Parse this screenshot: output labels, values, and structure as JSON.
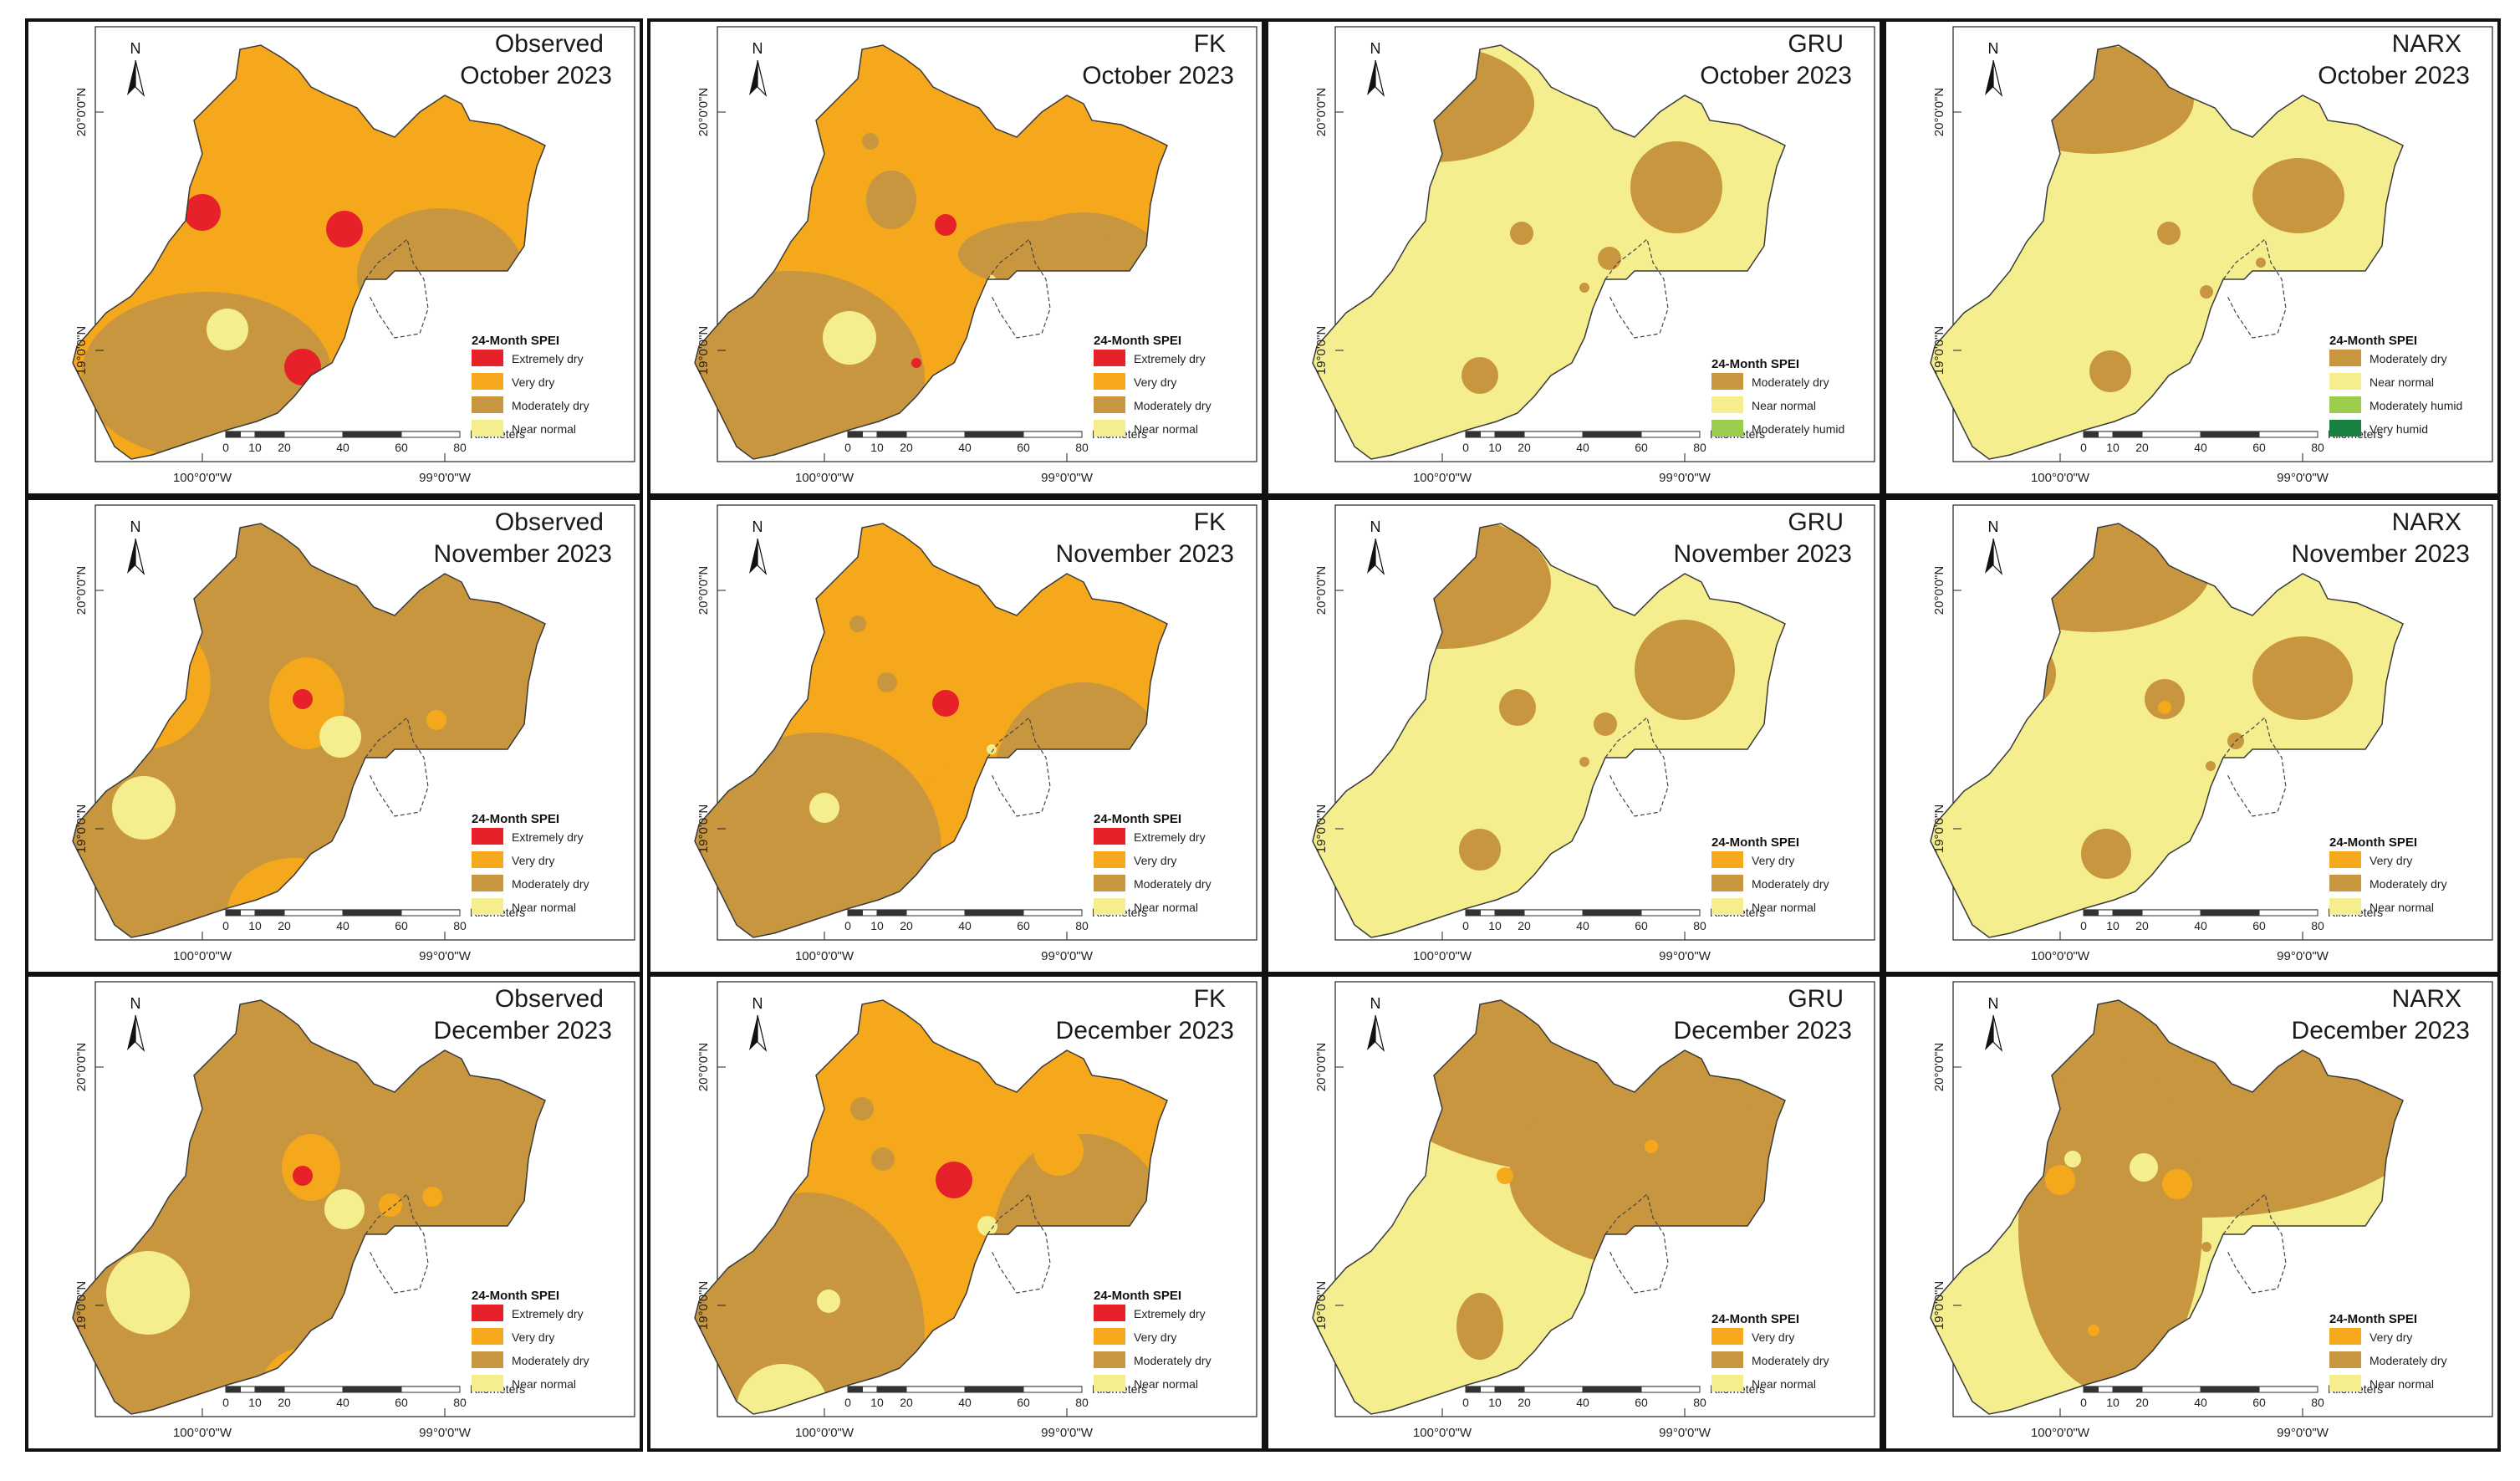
{
  "figure": {
    "colors": {
      "extremely_dry": "#e62129",
      "very_dry": "#f5a81c",
      "moderately_dry": "#c8963e",
      "near_normal": "#f4ee8f",
      "moderately_humid": "#9ccc4c",
      "very_humid": "#1a8040"
    },
    "axis_labels": {
      "lon_left": "100°0'0\"W",
      "lon_right": "99°0'0\"W",
      "lat_top": "20°0'0\"N",
      "lat_bottom": "19°0'0\"N"
    },
    "north_label": "N",
    "scale": {
      "unit": "Kilometers",
      "ticks": [
        "0",
        "10",
        "20",
        "40",
        "60",
        "80"
      ]
    },
    "legend_title": "24-Month SPEI",
    "panels": [
      {
        "model": "Observed",
        "month": "October 2023",
        "base": "very_dry",
        "legend": [
          "Extremely dry",
          "Very dry",
          "Moderately dry",
          "Near normal"
        ],
        "legend_colors": [
          "extremely_dry",
          "very_dry",
          "moderately_dry",
          "near_normal"
        ]
      },
      {
        "model": "FK",
        "month": "October 2023",
        "base": "very_dry",
        "legend": [
          "Extremely dry",
          "Very dry",
          "Moderately dry",
          "Near normal"
        ],
        "legend_colors": [
          "extremely_dry",
          "very_dry",
          "moderately_dry",
          "near_normal"
        ]
      },
      {
        "model": "GRU",
        "month": "October 2023",
        "base": "near_normal",
        "legend": [
          "Moderately dry",
          "Near normal",
          "Moderately humid"
        ],
        "legend_colors": [
          "moderately_dry",
          "near_normal",
          "moderately_humid"
        ]
      },
      {
        "model": "NARX",
        "month": "October 2023",
        "base": "near_normal",
        "legend": [
          "Moderately dry",
          "Near normal",
          "Moderately humid",
          "Very humid"
        ],
        "legend_colors": [
          "moderately_dry",
          "near_normal",
          "moderately_humid",
          "very_humid"
        ]
      },
      {
        "model": "Observed",
        "month": "November 2023",
        "base": "moderately_dry",
        "legend": [
          "Extremely dry",
          "Very dry",
          "Moderately dry",
          "Near normal"
        ],
        "legend_colors": [
          "extremely_dry",
          "very_dry",
          "moderately_dry",
          "near_normal"
        ]
      },
      {
        "model": "FK",
        "month": "November 2023",
        "base": "very_dry",
        "legend": [
          "Extremely dry",
          "Very dry",
          "Moderately dry",
          "Near normal"
        ],
        "legend_colors": [
          "extremely_dry",
          "very_dry",
          "moderately_dry",
          "near_normal"
        ]
      },
      {
        "model": "GRU",
        "month": "November 2023",
        "base": "near_normal",
        "legend": [
          "Very dry",
          "Moderately dry",
          "Near normal"
        ],
        "legend_colors": [
          "very_dry",
          "moderately_dry",
          "near_normal"
        ]
      },
      {
        "model": "NARX",
        "month": "November 2023",
        "base": "near_normal",
        "legend": [
          "Very dry",
          "Moderately dry",
          "Near normal"
        ],
        "legend_colors": [
          "very_dry",
          "moderately_dry",
          "near_normal"
        ]
      },
      {
        "model": "Observed",
        "month": "December 2023",
        "base": "moderately_dry",
        "legend": [
          "Extremely dry",
          "Very dry",
          "Moderately dry",
          "Near normal"
        ],
        "legend_colors": [
          "extremely_dry",
          "very_dry",
          "moderately_dry",
          "near_normal"
        ]
      },
      {
        "model": "FK",
        "month": "December 2023",
        "base": "very_dry",
        "legend": [
          "Extremely dry",
          "Very dry",
          "Moderately dry",
          "Near normal"
        ],
        "legend_colors": [
          "extremely_dry",
          "very_dry",
          "moderately_dry",
          "near_normal"
        ]
      },
      {
        "model": "GRU",
        "month": "December 2023",
        "base": "near_normal",
        "legend": [
          "Very dry",
          "Moderately dry",
          "Near normal"
        ],
        "legend_colors": [
          "very_dry",
          "moderately_dry",
          "near_normal"
        ]
      },
      {
        "model": "NARX",
        "month": "December 2023",
        "base": "near_normal",
        "legend": [
          "Very dry",
          "Moderately dry",
          "Near normal"
        ],
        "legend_colors": [
          "very_dry",
          "moderately_dry",
          "near_normal"
        ]
      }
    ]
  }
}
